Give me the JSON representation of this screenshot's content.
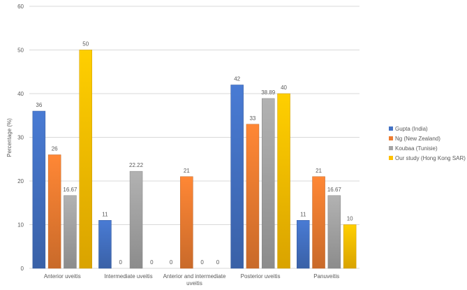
{
  "chart_data": {
    "type": "bar",
    "title": "",
    "xlabel": "",
    "ylabel": "Percentage (%)",
    "ylim": [
      0,
      60
    ],
    "yticks": [
      "0",
      "10",
      "20",
      "30",
      "40",
      "50",
      "60"
    ],
    "grid": true,
    "legend_position": "right",
    "categories": [
      "Anterior uveitis",
      "Intermediate uveitis",
      "Anterior and intermediate uveitis",
      "Posterior uveitis",
      "Panuveitis"
    ],
    "series": [
      {
        "name": "Gupta (India)",
        "color": "#4472C4",
        "values": [
          36,
          11,
          0,
          42,
          11
        ],
        "labels": [
          "36",
          "11",
          "0",
          "42",
          "11"
        ]
      },
      {
        "name": "Ng (New Zealand)",
        "color": "#ED7D31",
        "values": [
          26,
          0,
          21,
          33,
          21
        ],
        "labels": [
          "26",
          "0",
          "21",
          "33",
          "21"
        ]
      },
      {
        "name": "Koubaa (Tunisie)",
        "color": "#A5A5A5",
        "values": [
          16.67,
          22.22,
          0,
          38.89,
          16.67
        ],
        "labels": [
          "16.67",
          "22.22",
          "0",
          "38.89",
          "16.67"
        ]
      },
      {
        "name": "Our study (Hong Kong SAR)",
        "color": "#FFC000",
        "values": [
          50,
          0,
          0,
          40,
          10
        ],
        "labels": [
          "50",
          "0",
          "0",
          "40",
          "10"
        ]
      }
    ]
  }
}
